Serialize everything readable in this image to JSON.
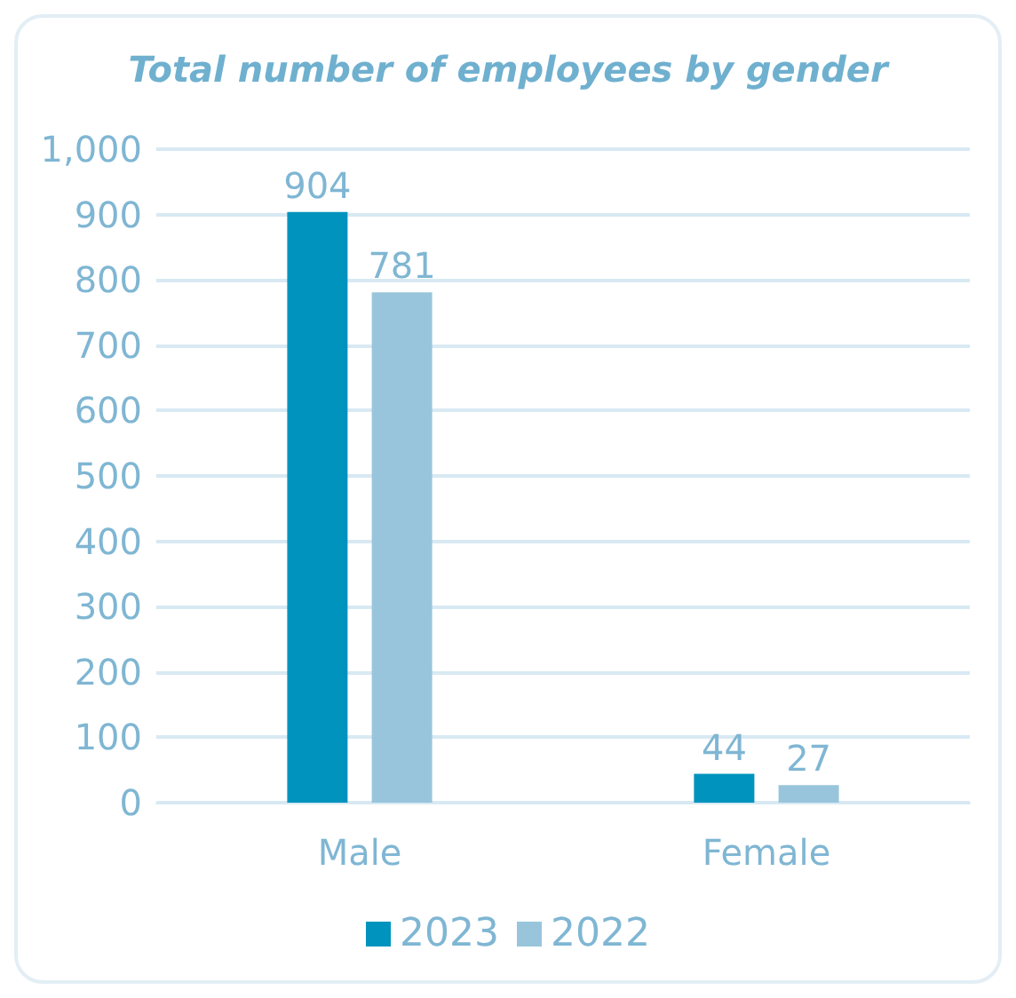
{
  "chart_data": {
    "type": "bar",
    "title": "Total number of employees by gender",
    "categories": [
      "Male",
      "Female"
    ],
    "series": [
      {
        "name": "2023",
        "color": "#0093bd",
        "values": [
          904,
          44
        ]
      },
      {
        "name": "2022",
        "color": "#99c5dc",
        "values": [
          781,
          27
        ]
      }
    ],
    "ylim": [
      0,
      1000
    ],
    "yticks": [
      0,
      100,
      200,
      300,
      400,
      500,
      600,
      700,
      800,
      900,
      {
        "value": 1000,
        "label": "1,000"
      }
    ],
    "grid": "y",
    "legend": "bottom",
    "data_labels": true
  }
}
